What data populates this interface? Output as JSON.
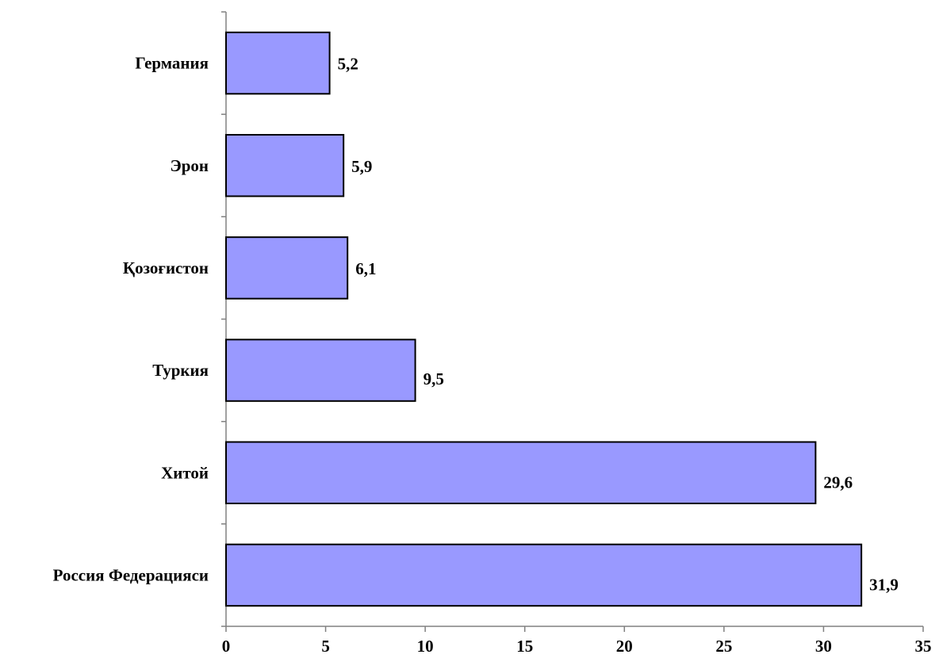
{
  "chart_data": {
    "type": "bar",
    "orientation": "horizontal",
    "categories": [
      "Россия Федерацияси",
      "Хитой",
      "Туркия",
      "Қозоғистон",
      "Эрон",
      "Германия"
    ],
    "values": [
      31.9,
      29.6,
      9.5,
      6.1,
      5.9,
      5.2
    ],
    "value_labels": [
      "31,9",
      "29,6",
      "9,5",
      "6,1",
      "5,9",
      "5,2"
    ],
    "xlim": [
      0,
      35
    ],
    "x_ticks": [
      0,
      5,
      10,
      15,
      20,
      25,
      30,
      35
    ],
    "x_tick_labels": [
      "0",
      "5",
      "10",
      "15",
      "20",
      "25",
      "30",
      "35"
    ],
    "title": "",
    "xlabel": "",
    "ylabel": "",
    "grid": false,
    "legend": "none",
    "colors": {
      "bar_fill": "#9999FF",
      "bar_stroke": "#000000",
      "axis": "#808080",
      "text": "#000000"
    }
  }
}
